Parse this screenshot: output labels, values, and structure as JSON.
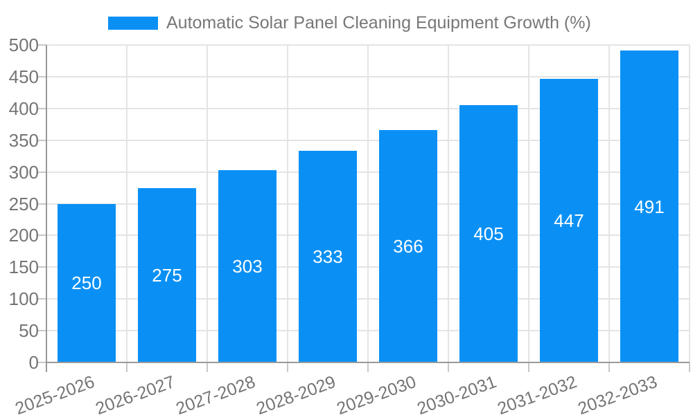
{
  "legend": {
    "swatch_color": "#0a90f5",
    "label": "Automatic Solar Panel Cleaning Equipment Growth (%)"
  },
  "chart_data": {
    "type": "bar",
    "title": "Automatic Solar Panel Cleaning Equipment Growth (%)",
    "categories": [
      "2025-2026",
      "2026-2027",
      "2027-2028",
      "2028-2029",
      "2029-2030",
      "2030-2031",
      "2031-2032",
      "2032-2033"
    ],
    "values": [
      250,
      275,
      303,
      333,
      366,
      405,
      447,
      491
    ],
    "xlabel": "",
    "ylabel": "",
    "ylim": [
      0,
      500
    ],
    "yticks": [
      0,
      50,
      100,
      150,
      200,
      250,
      300,
      350,
      400,
      450,
      500
    ],
    "grid": true,
    "legend_position": "top-center",
    "x_label_rotation_deg": -20,
    "value_label_position": "inside-center",
    "colors": {
      "bar": "#0a90f5",
      "bar_value_text": "#ffffff",
      "axis_text": "#757575",
      "grid_line": "#e4e4e4",
      "axis_line": "#999999",
      "tick": "#c8c8c8",
      "background": "#ffffff"
    }
  }
}
